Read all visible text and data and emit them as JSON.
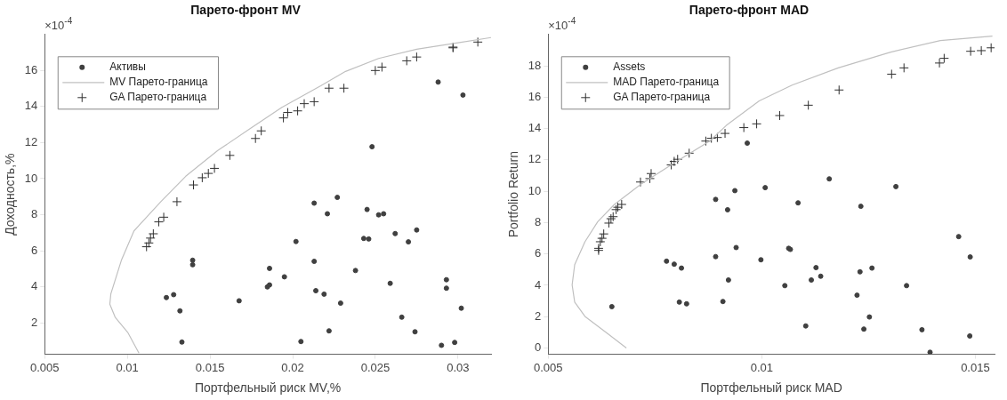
{
  "chart_data": [
    {
      "type": "scatter",
      "title": "Парето-фронт MV",
      "xlabel": "Портфельный риск MV,%",
      "ylabel": "Доходность,%",
      "annotations": [
        "×10$^{-4}$"
      ],
      "xlim": [
        0.005,
        0.032
      ],
      "ylim": [
        0.25,
        18
      ],
      "xticks": [
        0.005,
        0.01,
        0.015,
        0.02,
        0.025,
        0.03
      ],
      "yticks": [
        2,
        4,
        6,
        8,
        10,
        12,
        14,
        16
      ],
      "grid": false,
      "legend": "top left",
      "series": [
        {
          "name": "Активы",
          "type": "scatter",
          "marker": "circle",
          "color": "#404040",
          "x": [
            0.01395,
            0.01395,
            0.01236,
            0.0128,
            0.01318,
            0.0133,
            0.01676,
            0.0186,
            0.01847,
            0.0186,
            0.0195,
            0.0202,
            0.0213,
            0.0213,
            0.0214,
            0.0205,
            0.0248,
            0.0288,
            0.0303,
            0.0227,
            0.0221,
            0.0245,
            0.0252,
            0.0255,
            0.0243,
            0.0246,
            0.0262,
            0.0275,
            0.027,
            0.0238,
            0.0219,
            0.0259,
            0.0229,
            0.0293,
            0.0293,
            0.0302,
            0.0266,
            0.0222,
            0.0274,
            0.029,
            0.0298
          ],
          "values": [
            5.47,
            5.22,
            3.4,
            3.56,
            2.66,
            0.93,
            3.22,
            5.02,
            3.99,
            4.1,
            4.55,
            6.51,
            8.64,
            5.41,
            3.78,
            0.96,
            11.77,
            15.36,
            14.64,
            8.96,
            8.05,
            8.29,
            7.99,
            8.05,
            6.68,
            6.65,
            6.95,
            7.15,
            6.49,
            4.9,
            3.59,
            4.19,
            3.09,
            4.39,
            3.92,
            2.81,
            2.31,
            1.55,
            1.5,
            0.75,
            0.91
          ]
        },
        {
          "name": "MV Парето-граница",
          "type": "line",
          "marker": "none",
          "color": "#c0c0c0",
          "x": [
            0.0107,
            0.01004,
            0.00926,
            0.00894,
            0.009,
            0.00965,
            0.0104,
            0.012,
            0.01353,
            0.01547,
            0.0174,
            0.01935,
            0.0217,
            0.0232,
            0.0252,
            0.0275,
            0.03,
            0.032
          ],
          "values": [
            0.32,
            1.44,
            2.31,
            3.03,
            3.6,
            5.5,
            7.1,
            8.7,
            10.13,
            11.56,
            12.76,
            13.96,
            15.15,
            15.95,
            16.67,
            17.18,
            17.54,
            17.83
          ]
        },
        {
          "name": "GA Парето-граница",
          "type": "scatter",
          "marker": "cross",
          "color": "#303030",
          "x": [
            0.01116,
            0.0113,
            0.0114,
            0.01157,
            0.0119,
            0.0122,
            0.013,
            0.014,
            0.01453,
            0.0149,
            0.01527,
            0.0162,
            0.01775,
            0.0181,
            0.01944,
            0.0197,
            0.0203,
            0.0207,
            0.0213,
            0.0222,
            0.0231,
            0.025,
            0.0254,
            0.0269,
            0.0275,
            0.0297,
            0.0297,
            0.0312
          ],
          "values": [
            6.22,
            6.43,
            6.7,
            6.94,
            7.6,
            7.86,
            8.72,
            9.65,
            10.05,
            10.29,
            10.57,
            11.29,
            12.23,
            12.65,
            13.37,
            13.67,
            13.76,
            14.16,
            14.27,
            15.02,
            15.02,
            16.0,
            16.19,
            16.54,
            16.75,
            17.26,
            17.3,
            17.58
          ]
        }
      ]
    },
    {
      "type": "scatter",
      "title": "Парето-фронт MAD",
      "xlabel": "Портфельный риск MAD",
      "ylabel": "Portfolio Return",
      "annotations": [
        "×10$^{-4}$"
      ],
      "xlim": [
        0.005,
        0.01545
      ],
      "ylim": [
        -0.4,
        20
      ],
      "xticks": [
        0.005,
        0.01,
        0.015
      ],
      "yticks": [
        0,
        2,
        4,
        6,
        8,
        10,
        12,
        14,
        16,
        18
      ],
      "grid": false,
      "legend": "top left",
      "series": [
        {
          "name": "Assets",
          "type": "scatter",
          "marker": "circle",
          "color": "#404040",
          "x": [
            0.00649,
            0.00777,
            0.00795,
            0.00812,
            0.00807,
            0.00824,
            0.00892,
            0.00937,
            0.0092,
            0.00892,
            0.0094,
            0.00922,
            0.00909,
            0.00966,
            0.01008,
            0.01085,
            0.01158,
            0.01314,
            0.01232,
            0.01063,
            0.01067,
            0.00998,
            0.01461,
            0.01488,
            0.01054,
            0.01116,
            0.01127,
            0.01138,
            0.0123,
            0.01258,
            0.01339,
            0.01223,
            0.01252,
            0.01103,
            0.01239,
            0.01375,
            0.01394,
            0.01487
          ],
          "values": [
            2.64,
            5.54,
            5.35,
            5.1,
            2.93,
            2.82,
            9.48,
            10.04,
            8.82,
            5.83,
            6.41,
            4.34,
            2.97,
            13.07,
            10.23,
            9.26,
            10.79,
            10.3,
            9.04,
            6.36,
            6.29,
            5.63,
            7.11,
            5.81,
            3.98,
            4.34,
            5.13,
            4.58,
            4.86,
            5.1,
            3.98,
            3.37,
            1.98,
            1.41,
            1.21,
            1.17,
            -0.27,
            0.77
          ]
        },
        {
          "name": "MAD Парето-граница",
          "type": "line",
          "marker": "none",
          "color": "#c0c0c0",
          "x": [
            0.00683,
            0.00639,
            0.00586,
            0.00562,
            0.00556,
            0.00562,
            0.00586,
            0.00616,
            0.00655,
            0.00717,
            0.00801,
            0.00878,
            0.00917,
            0.00994,
            0.01071,
            0.01179,
            0.01302,
            0.01418,
            0.0154
          ],
          "values": [
            0.0,
            0.92,
            2.02,
            2.93,
            4.03,
            5.32,
            6.78,
            8.06,
            9.16,
            10.45,
            11.91,
            13.2,
            14.2,
            15.76,
            16.77,
            17.87,
            18.88,
            19.61,
            19.9
          ]
        },
        {
          "name": "GA Парето-граница",
          "type": "scatter",
          "marker": "cross",
          "color": "#303030",
          "x": [
            0.00618,
            0.00618,
            0.00622,
            0.00626,
            0.0063,
            0.00642,
            0.00647,
            0.00652,
            0.00659,
            0.00663,
            0.00672,
            0.00716,
            0.00738,
            0.00741,
            0.00788,
            0.00795,
            0.00803,
            0.0083,
            0.00869,
            0.00882,
            0.00896,
            0.00914,
            0.00958,
            0.00988,
            0.01042,
            0.01109,
            0.01181,
            0.01304,
            0.01333,
            0.01416,
            0.01427,
            0.01489,
            0.01514,
            0.01537
          ],
          "values": [
            6.23,
            6.36,
            6.78,
            7.0,
            7.28,
            7.97,
            8.25,
            8.38,
            8.83,
            8.98,
            9.16,
            10.59,
            10.81,
            11.13,
            11.68,
            11.91,
            12.04,
            12.43,
            13.2,
            13.38,
            13.43,
            13.69,
            14.06,
            14.3,
            14.83,
            15.49,
            16.46,
            17.47,
            17.87,
            18.18,
            18.48,
            18.93,
            18.97,
            19.15
          ]
        }
      ]
    }
  ]
}
